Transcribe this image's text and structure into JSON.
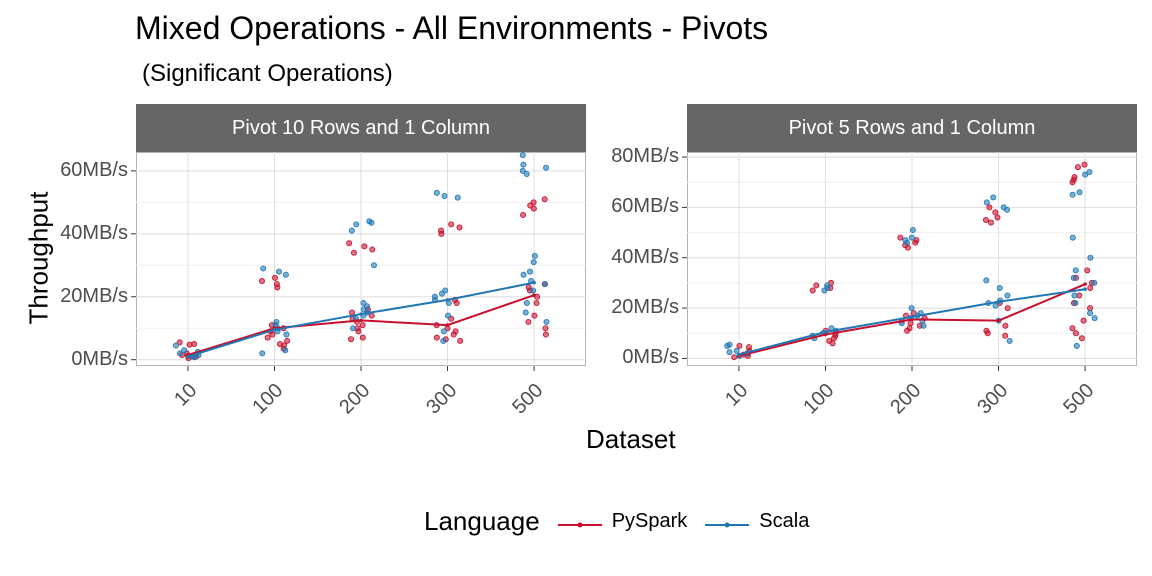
{
  "title": "Mixed Operations - All Environments - Pivots",
  "subtitle": "(Significant Operations)",
  "xaxis_title": "Dataset",
  "yaxis_title": "Throughput",
  "legend": {
    "title": "Language",
    "items": [
      {
        "label": "PySpark",
        "color": "#C8102E"
      },
      {
        "label": "Scala",
        "color": "#1F78B4"
      }
    ]
  },
  "chart_data": [
    {
      "type": "line",
      "panel_title": "Pivot 10 Rows and 1 Column",
      "categories": [
        "10",
        "100",
        "200",
        "300",
        "500"
      ],
      "y_ticks": [
        "0MB/s",
        "20MB/s",
        "40MB/s",
        "60MB/s"
      ],
      "ylim": [
        -2,
        66
      ],
      "series": [
        {
          "name": "PySpark",
          "values": [
            1.5,
            10,
            12.5,
            11,
            20.5
          ],
          "points": [
            [
              0,
              5.5
            ],
            [
              0,
              5
            ],
            [
              0,
              4.8
            ],
            [
              0,
              2
            ],
            [
              0,
              1.5
            ],
            [
              0,
              1
            ],
            [
              0,
              0.8
            ],
            [
              0,
              1.2
            ],
            [
              0,
              0.5
            ],
            [
              1,
              26
            ],
            [
              1,
              25
            ],
            [
              1,
              24
            ],
            [
              1,
              23
            ],
            [
              1,
              11
            ],
            [
              1,
              10
            ],
            [
              1,
              9
            ],
            [
              1,
              8
            ],
            [
              1,
              7
            ],
            [
              1,
              6
            ],
            [
              1,
              5
            ],
            [
              1,
              4.5
            ],
            [
              1,
              3.5
            ],
            [
              2,
              37
            ],
            [
              2,
              36
            ],
            [
              2,
              35
            ],
            [
              2,
              34
            ],
            [
              2,
              16
            ],
            [
              2,
              15
            ],
            [
              2,
              14
            ],
            [
              2,
              13
            ],
            [
              2,
              12
            ],
            [
              2,
              11
            ],
            [
              2,
              10
            ],
            [
              2,
              9
            ],
            [
              2,
              7
            ],
            [
              2,
              6.5
            ],
            [
              3,
              43
            ],
            [
              3,
              42
            ],
            [
              3,
              41
            ],
            [
              3,
              40
            ],
            [
              3,
              19
            ],
            [
              3,
              18
            ],
            [
              3,
              13
            ],
            [
              3,
              11
            ],
            [
              3,
              10
            ],
            [
              3,
              9
            ],
            [
              3,
              8
            ],
            [
              3,
              7
            ],
            [
              3,
              6.5
            ],
            [
              3,
              6
            ],
            [
              4,
              51
            ],
            [
              4,
              50
            ],
            [
              4,
              49
            ],
            [
              4,
              48
            ],
            [
              4,
              46
            ],
            [
              4,
              24
            ],
            [
              4,
              23
            ],
            [
              4,
              22
            ],
            [
              4,
              20
            ],
            [
              4,
              18
            ],
            [
              4,
              14
            ],
            [
              4,
              12
            ],
            [
              4,
              10
            ],
            [
              4,
              8
            ]
          ]
        },
        {
          "name": "Scala",
          "values": [
            1,
            9.5,
            14.5,
            19,
            24.5
          ],
          "points": [
            [
              0,
              4.5
            ],
            [
              0,
              3
            ],
            [
              0,
              2.5
            ],
            [
              0,
              2
            ],
            [
              0,
              1.5
            ],
            [
              0,
              1
            ],
            [
              0,
              0.8
            ],
            [
              1,
              29
            ],
            [
              1,
              28
            ],
            [
              1,
              27
            ],
            [
              1,
              12
            ],
            [
              1,
              11
            ],
            [
              1,
              10
            ],
            [
              1,
              9
            ],
            [
              1,
              8
            ],
            [
              1,
              3
            ],
            [
              1,
              2
            ],
            [
              2,
              44
            ],
            [
              2,
              43.5
            ],
            [
              2,
              43
            ],
            [
              2,
              41
            ],
            [
              2,
              30
            ],
            [
              2,
              18
            ],
            [
              2,
              17
            ],
            [
              2,
              16
            ],
            [
              2,
              15
            ],
            [
              2,
              14
            ],
            [
              2,
              13
            ],
            [
              2,
              10
            ],
            [
              3,
              53
            ],
            [
              3,
              52
            ],
            [
              3,
              51.5
            ],
            [
              3,
              22
            ],
            [
              3,
              21
            ],
            [
              3,
              20
            ],
            [
              3,
              19
            ],
            [
              3,
              18
            ],
            [
              3,
              14
            ],
            [
              3,
              9
            ],
            [
              3,
              6
            ],
            [
              4,
              65
            ],
            [
              4,
              62
            ],
            [
              4,
              61
            ],
            [
              4,
              60
            ],
            [
              4,
              59
            ],
            [
              4,
              33
            ],
            [
              4,
              31
            ],
            [
              4,
              28
            ],
            [
              4,
              27
            ],
            [
              4,
              25
            ],
            [
              4,
              24
            ],
            [
              4,
              22
            ],
            [
              4,
              18
            ],
            [
              4,
              15
            ],
            [
              4,
              12
            ]
          ]
        }
      ]
    },
    {
      "type": "line",
      "panel_title": "Pivot 5 Rows and 1 Column",
      "categories": [
        "10",
        "100",
        "200",
        "300",
        "500"
      ],
      "y_ticks": [
        "0MB/s",
        "20MB/s",
        "40MB/s",
        "60MB/s",
        "80MB/s"
      ],
      "ylim": [
        -3,
        82
      ],
      "series": [
        {
          "name": "PySpark",
          "values": [
            1,
            9.5,
            15.5,
            15,
            29.5
          ],
          "points": [
            [
              0,
              5
            ],
            [
              0,
              4.5
            ],
            [
              0,
              3
            ],
            [
              0,
              2
            ],
            [
              0,
              1.5
            ],
            [
              0,
              1
            ],
            [
              0,
              0.5
            ],
            [
              1,
              30
            ],
            [
              1,
              29
            ],
            [
              1,
              28
            ],
            [
              1,
              27
            ],
            [
              1,
              11
            ],
            [
              1,
              10
            ],
            [
              1,
              9
            ],
            [
              1,
              8
            ],
            [
              1,
              7
            ],
            [
              1,
              6
            ],
            [
              2,
              48
            ],
            [
              2,
              47
            ],
            [
              2,
              46
            ],
            [
              2,
              45
            ],
            [
              2,
              44
            ],
            [
              2,
              18
            ],
            [
              2,
              17
            ],
            [
              2,
              16
            ],
            [
              2,
              15
            ],
            [
              2,
              14
            ],
            [
              2,
              13
            ],
            [
              2,
              12
            ],
            [
              2,
              11
            ],
            [
              3,
              60
            ],
            [
              3,
              58
            ],
            [
              3,
              56
            ],
            [
              3,
              55
            ],
            [
              3,
              54
            ],
            [
              3,
              22
            ],
            [
              3,
              20
            ],
            [
              3,
              13
            ],
            [
              3,
              11
            ],
            [
              3,
              10
            ],
            [
              3,
              9
            ],
            [
              4,
              77
            ],
            [
              4,
              76
            ],
            [
              4,
              72
            ],
            [
              4,
              71
            ],
            [
              4,
              70
            ],
            [
              4,
              35
            ],
            [
              4,
              32
            ],
            [
              4,
              30
            ],
            [
              4,
              28
            ],
            [
              4,
              25
            ],
            [
              4,
              22
            ],
            [
              4,
              20
            ],
            [
              4,
              15
            ],
            [
              4,
              12
            ],
            [
              4,
              10
            ],
            [
              4,
              8
            ]
          ]
        },
        {
          "name": "Scala",
          "values": [
            1.5,
            10.5,
            16.5,
            22.5,
            27.5
          ],
          "points": [
            [
              0,
              5.5
            ],
            [
              0,
              5
            ],
            [
              0,
              3
            ],
            [
              0,
              2.5
            ],
            [
              0,
              2
            ],
            [
              0,
              1
            ],
            [
              1,
              29
            ],
            [
              1,
              28
            ],
            [
              1,
              27
            ],
            [
              1,
              12
            ],
            [
              1,
              11
            ],
            [
              1,
              10
            ],
            [
              1,
              9
            ],
            [
              1,
              8
            ],
            [
              2,
              51
            ],
            [
              2,
              48
            ],
            [
              2,
              47
            ],
            [
              2,
              46
            ],
            [
              2,
              20
            ],
            [
              2,
              18
            ],
            [
              2,
              17
            ],
            [
              2,
              16
            ],
            [
              2,
              15
            ],
            [
              2,
              14
            ],
            [
              2,
              13
            ],
            [
              3,
              64
            ],
            [
              3,
              62
            ],
            [
              3,
              60
            ],
            [
              3,
              59
            ],
            [
              3,
              31
            ],
            [
              3,
              28
            ],
            [
              3,
              25
            ],
            [
              3,
              23
            ],
            [
              3,
              22
            ],
            [
              3,
              21
            ],
            [
              3,
              15
            ],
            [
              3,
              7
            ],
            [
              4,
              74
            ],
            [
              4,
              73
            ],
            [
              4,
              66
            ],
            [
              4,
              65
            ],
            [
              4,
              48
            ],
            [
              4,
              40
            ],
            [
              4,
              35
            ],
            [
              4,
              32
            ],
            [
              4,
              30
            ],
            [
              4,
              25
            ],
            [
              4,
              22
            ],
            [
              4,
              18
            ],
            [
              4,
              16
            ],
            [
              4,
              5
            ]
          ]
        }
      ]
    }
  ]
}
